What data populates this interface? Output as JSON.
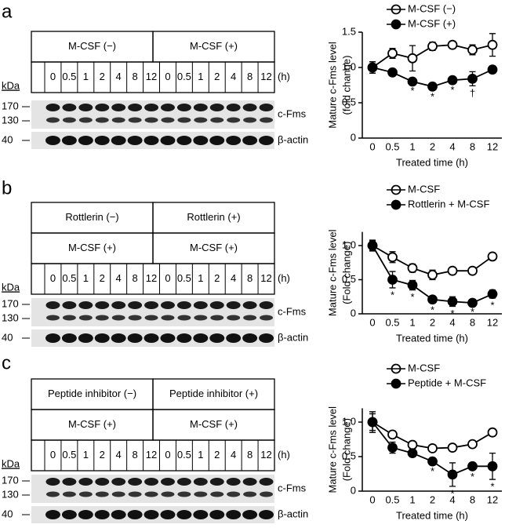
{
  "panels": [
    {
      "letter": "a",
      "headers": [
        [
          "M-CSF (−)",
          "M-CSF (+)"
        ]
      ],
      "times": [
        "0",
        "0.5",
        "1",
        "2",
        "4",
        "8",
        "12"
      ],
      "time_unit": "(h)",
      "kda": "kDa",
      "markers": [
        "170",
        "130",
        "40"
      ],
      "bands": [
        "c-Fms",
        "β-actin"
      ]
    },
    {
      "letter": "b",
      "headers": [
        [
          "Rottlerin (−)",
          "Rottlerin (+)"
        ],
        [
          "M-CSF (+)",
          "M-CSF (+)"
        ]
      ],
      "times": [
        "0",
        "0.5",
        "1",
        "2",
        "4",
        "8",
        "12"
      ],
      "time_unit": "(h)",
      "kda": "kDa",
      "markers": [
        "170",
        "130",
        "40"
      ],
      "bands": [
        "c-Fms",
        "β-actin"
      ]
    },
    {
      "letter": "c",
      "headers": [
        [
          "Peptide inhibitor (−)",
          "Peptide inhibitor (+)"
        ],
        [
          "M-CSF (+)",
          "M-CSF (+)"
        ]
      ],
      "times": [
        "0",
        "0.5",
        "1",
        "2",
        "4",
        "8",
        "12"
      ],
      "time_unit": "(h)",
      "kda": "kDa",
      "markers": [
        "170",
        "130",
        "40"
      ],
      "bands": [
        "c-Fms",
        "β-actin"
      ]
    }
  ],
  "chart_data": [
    {
      "type": "line",
      "ylabel": [
        "Mature c-Fms level",
        "(fold change)"
      ],
      "xlabel": "Treated time (h)",
      "categories": [
        "0",
        "0.5",
        "1",
        "2",
        "4",
        "8",
        "12"
      ],
      "ylim": [
        0,
        1.5
      ],
      "yticks": [
        0,
        0.5,
        {
          "value": 1,
          "label": "1.0"
        },
        1.5
      ],
      "legend": "top",
      "series": [
        {
          "name": "M-CSF (−)",
          "color": "#000000",
          "marker_fill": "#ffffff",
          "values": [
            1.0,
            1.2,
            1.13,
            1.3,
            1.32,
            1.25,
            1.32
          ],
          "errors": [
            0.08,
            0.07,
            0.18,
            0.06,
            0.05,
            0.07,
            0.16
          ]
        },
        {
          "name": "M-CSF (+)",
          "color": "#000000",
          "marker_fill": "#000000",
          "values": [
            1.0,
            0.93,
            0.8,
            0.73,
            0.82,
            0.84,
            0.97
          ],
          "errors": [
            0.08,
            0.04,
            0.03,
            0.04,
            0.04,
            0.1,
            0.03
          ],
          "significance": [
            null,
            null,
            "*",
            "*",
            "*",
            "†",
            null
          ]
        }
      ]
    },
    {
      "type": "line",
      "ylabel": [
        "Mature c-Fms level",
        "(Fold change)"
      ],
      "xlabel": "Treated time (h)",
      "categories": [
        "0",
        "0.5",
        "1",
        "2",
        "4",
        "8",
        "12"
      ],
      "ylim": [
        0,
        1.2
      ],
      "yticks": [
        0,
        0.5,
        {
          "value": 1,
          "label": "1.0"
        }
      ],
      "legend": "top",
      "series": [
        {
          "name": "M-CSF",
          "color": "#000000",
          "marker_fill": "#ffffff",
          "values": [
            1.0,
            0.83,
            0.67,
            0.57,
            0.63,
            0.63,
            0.84
          ],
          "errors": [
            0.07,
            0.08,
            0.06,
            0.07,
            0.03,
            0.03,
            0.03
          ]
        },
        {
          "name": "Rottlerin + M-CSF",
          "color": "#000000",
          "marker_fill": "#000000",
          "values": [
            1.0,
            0.5,
            0.42,
            0.21,
            0.18,
            0.16,
            0.29
          ],
          "errors": [
            0.08,
            0.12,
            0.07,
            0.05,
            0.07,
            0.03,
            0.06
          ],
          "significance": [
            null,
            "*",
            "*",
            "*",
            "*",
            "*",
            "*"
          ]
        }
      ]
    },
    {
      "type": "line",
      "ylabel": [
        "Mature c-Fms level",
        "(Fold change)"
      ],
      "xlabel": "Treated time (h)",
      "categories": [
        "0",
        "0.5",
        "1",
        "2",
        "4",
        "8",
        "12"
      ],
      "ylim": [
        0,
        1.2
      ],
      "yticks": [
        0,
        0.5,
        {
          "value": 1,
          "label": "1.0"
        }
      ],
      "legend": "top",
      "series": [
        {
          "name": "M-CSF",
          "color": "#000000",
          "marker_fill": "#ffffff",
          "values": [
            1.0,
            0.82,
            0.67,
            0.62,
            0.63,
            0.68,
            0.85
          ],
          "errors": [
            0.15,
            0.05,
            0.03,
            0.03,
            0.03,
            0.03,
            0.03
          ]
        },
        {
          "name": "Peptide + M-CSF",
          "color": "#000000",
          "marker_fill": "#000000",
          "values": [
            1.0,
            0.63,
            0.55,
            0.43,
            0.24,
            0.36,
            0.36
          ],
          "errors": [
            0.12,
            0.08,
            0.05,
            0.04,
            0.17,
            0.05,
            0.19
          ],
          "significance": [
            null,
            null,
            null,
            "*",
            "*",
            "*",
            "*"
          ]
        }
      ]
    }
  ]
}
